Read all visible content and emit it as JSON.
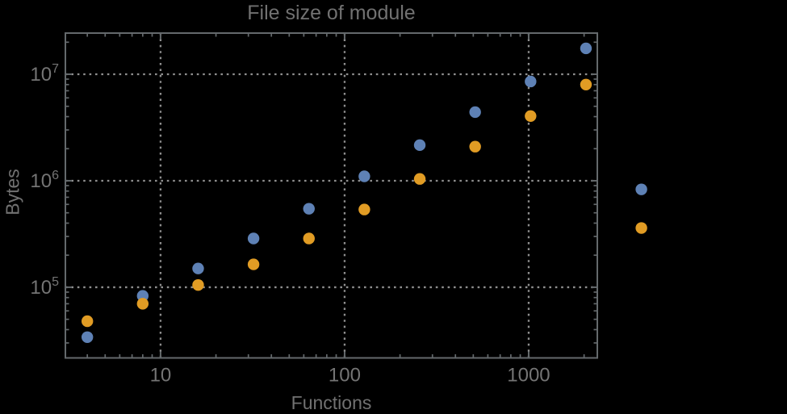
{
  "colors": {
    "background": "#000000",
    "frame": "#64696c",
    "grid": "#8e8e8e",
    "text": "#717171",
    "tick_text": "#747474",
    "series_blue": "#5e81b5",
    "series_orange": "#e19c24"
  },
  "chart_data": {
    "type": "scatter",
    "title": "File size of module",
    "xlabel": "Functions",
    "ylabel": "Bytes",
    "x_scale": "log",
    "y_scale": "log",
    "xlim": [
      3.04,
      2360
    ],
    "ylim": [
      21700,
      24350000
    ],
    "grid": "dotted",
    "legend": "none",
    "x": [
      4,
      8,
      16,
      32,
      64,
      128,
      256,
      512,
      1024,
      2048,
      4096
    ],
    "series": [
      {
        "name": "series-blue",
        "color": "#5e81b5",
        "values": [
          34000,
          83000,
          150000,
          287000,
          546000,
          1100000,
          2160000,
          4410000,
          8550000,
          17500000,
          830000
        ]
      },
      {
        "name": "series-orange",
        "color": "#e19c24",
        "values": [
          48000,
          70000,
          105000,
          164000,
          287000,
          537000,
          1040000,
          2090000,
          4050000,
          8000000,
          360000
        ]
      }
    ],
    "x_ticks": [
      {
        "value": 10,
        "label": "10"
      },
      {
        "value": 100,
        "label": "100"
      },
      {
        "value": 1000,
        "label": "1000"
      }
    ],
    "y_ticks": [
      {
        "value": 100000,
        "base": "10",
        "exp": "5"
      },
      {
        "value": 1000000,
        "base": "10",
        "exp": "6"
      },
      {
        "value": 10000000,
        "base": "10",
        "exp": "7"
      }
    ],
    "x_minor_ticks": [
      4,
      5,
      6,
      7,
      8,
      9,
      20,
      30,
      40,
      50,
      60,
      70,
      80,
      90,
      200,
      300,
      400,
      500,
      600,
      700,
      800,
      900,
      2000
    ],
    "y_minor_ticks": [
      30000,
      40000,
      50000,
      60000,
      70000,
      80000,
      90000,
      200000,
      300000,
      400000,
      500000,
      600000,
      700000,
      800000,
      900000,
      2000000,
      3000000,
      4000000,
      5000000,
      6000000,
      7000000,
      8000000,
      9000000,
      20000000
    ],
    "gridlines": {
      "x": [
        10,
        100,
        1000
      ],
      "y": [
        100000,
        1000000,
        10000000
      ]
    }
  }
}
